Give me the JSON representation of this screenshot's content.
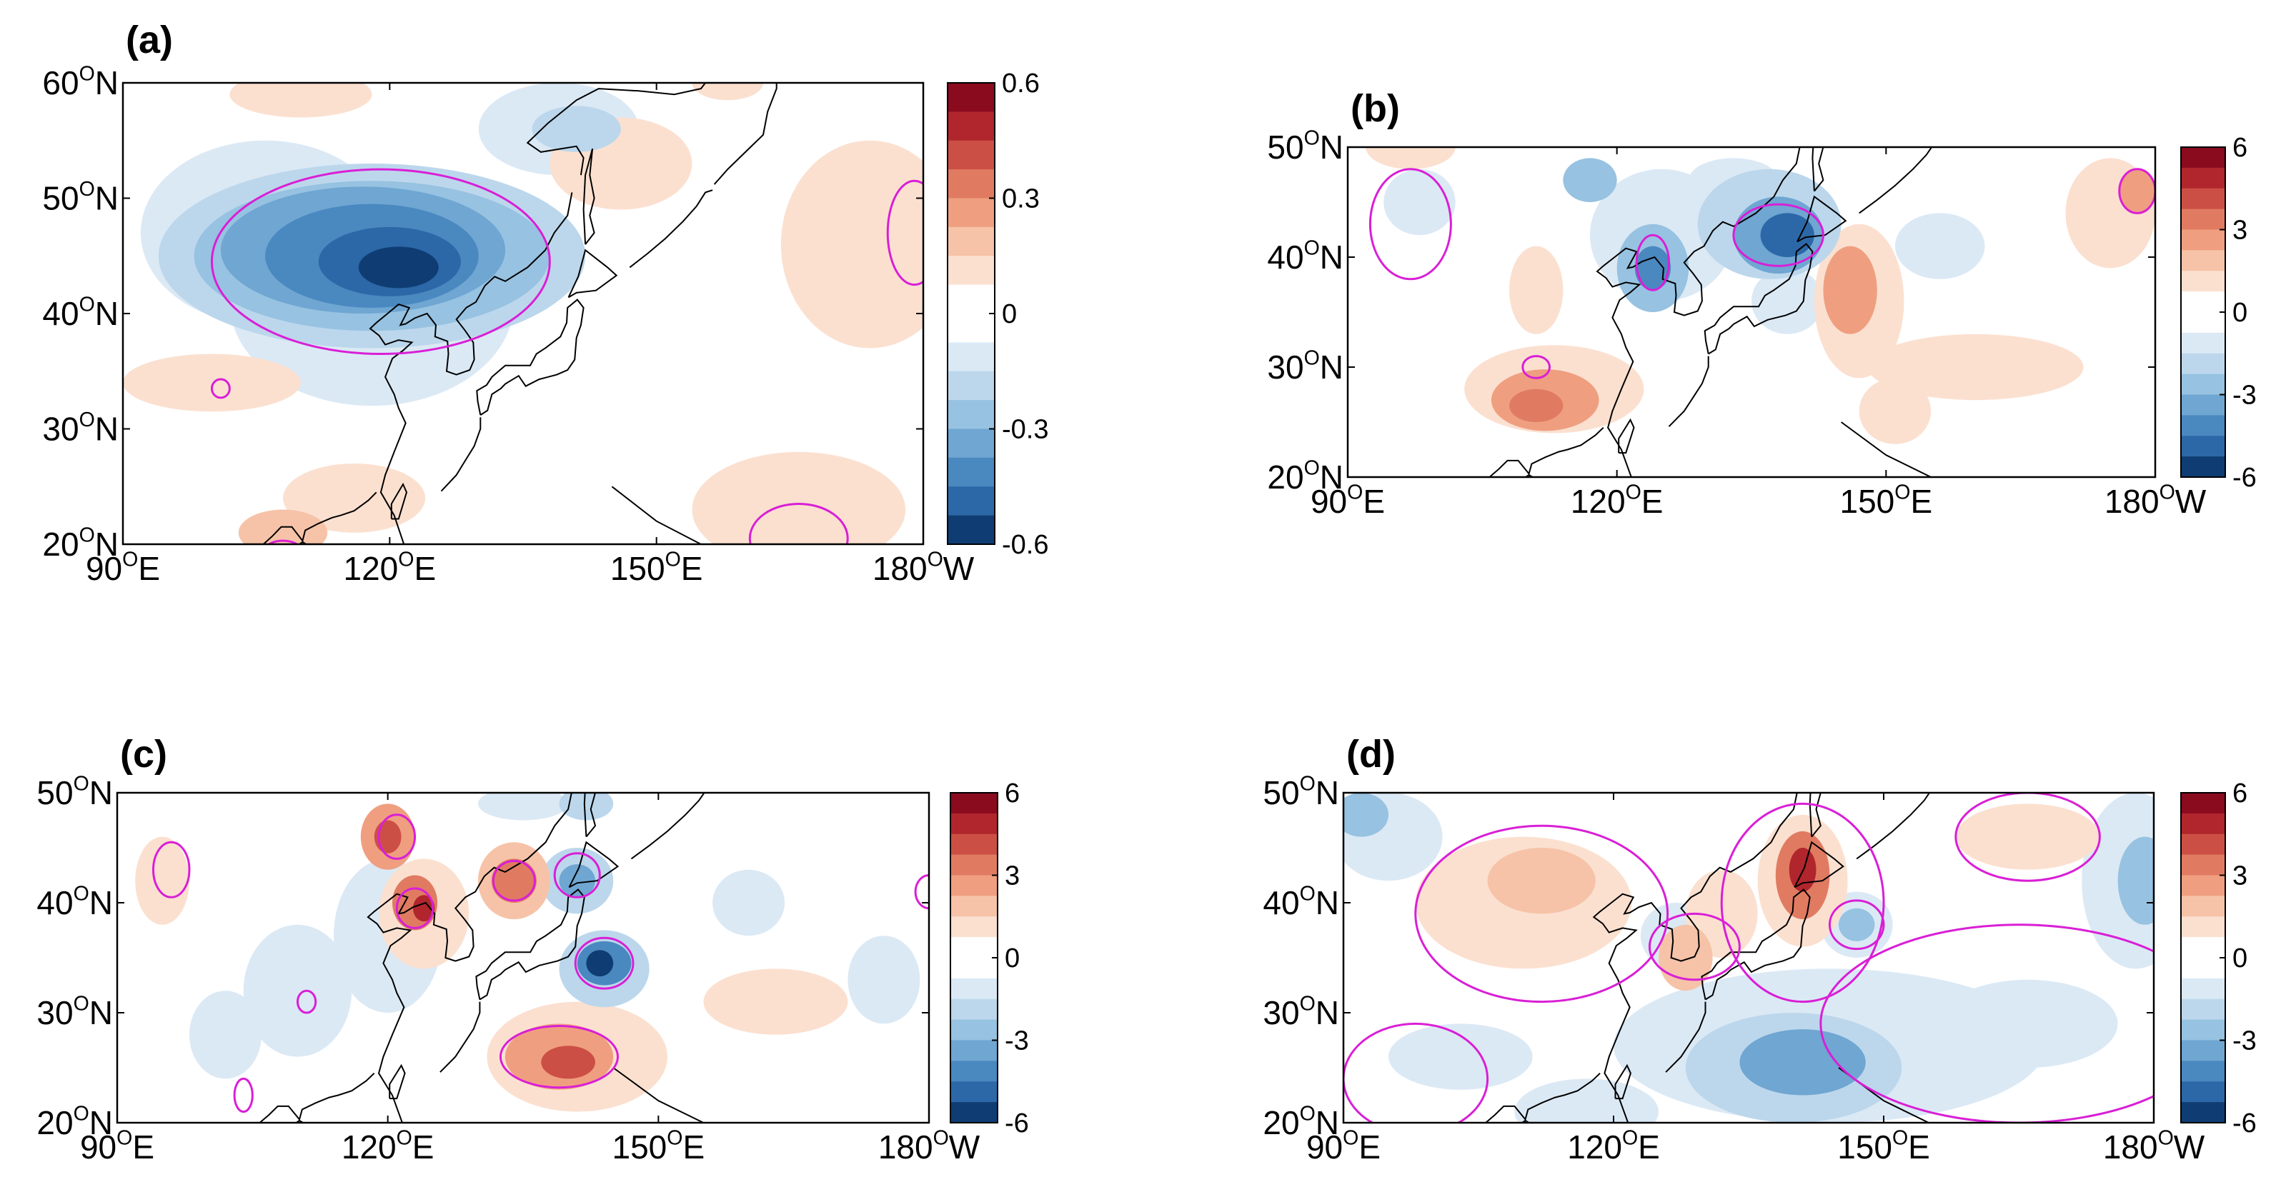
{
  "figure": {
    "panels": [
      {
        "id": "a",
        "label": "(a)",
        "lat_ticks": [
          "60",
          "50",
          "40",
          "30",
          "20"
        ],
        "lon_ticks": [
          "90",
          "120",
          "150",
          "180"
        ],
        "lat_suffix": "N",
        "lon_suffixes": [
          "E",
          "E",
          "E",
          "W"
        ],
        "colorbar": {
          "ticks": [
            "0.6",
            "0.3",
            "0",
            "-0.3",
            "-0.6"
          ],
          "range": [
            -0.6,
            0.6
          ]
        },
        "lat_range": [
          20,
          60
        ],
        "lon_range": [
          90,
          180
        ]
      },
      {
        "id": "b",
        "label": "(b)",
        "lat_ticks": [
          "50",
          "40",
          "30",
          "20"
        ],
        "lon_ticks": [
          "90",
          "120",
          "150",
          "180"
        ],
        "lat_suffix": "N",
        "lon_suffixes": [
          "E",
          "E",
          "E",
          "W"
        ],
        "colorbar": {
          "ticks": [
            "6",
            "3",
            "0",
            "-3",
            "-6"
          ],
          "range": [
            -6,
            6
          ]
        },
        "lat_range": [
          20,
          50
        ],
        "lon_range": [
          90,
          180
        ]
      },
      {
        "id": "c",
        "label": "(c)",
        "lat_ticks": [
          "50",
          "40",
          "30",
          "20"
        ],
        "lon_ticks": [
          "90",
          "120",
          "150",
          "180"
        ],
        "lat_suffix": "N",
        "lon_suffixes": [
          "E",
          "E",
          "E",
          "W"
        ],
        "colorbar": {
          "ticks": [
            "6",
            "3",
            "0",
            "-3",
            "-6"
          ],
          "range": [
            -6,
            6
          ]
        },
        "lat_range": [
          20,
          50
        ],
        "lon_range": [
          90,
          180
        ]
      },
      {
        "id": "d",
        "label": "(d)",
        "lat_ticks": [
          "50",
          "40",
          "30",
          "20"
        ],
        "lon_ticks": [
          "90",
          "120",
          "150",
          "180"
        ],
        "lat_suffix": "N",
        "lon_suffixes": [
          "E",
          "E",
          "E",
          "W"
        ],
        "colorbar": {
          "ticks": [
            "6",
            "3",
            "0",
            "-3",
            "-6"
          ],
          "range": [
            -6,
            6
          ]
        },
        "lat_range": [
          20,
          50
        ],
        "lon_range": [
          90,
          180
        ]
      }
    ],
    "degree_symbol": "O",
    "colors": {
      "red_ramp": [
        "#fbe0d0",
        "#f6c3a8",
        "#ef9f80",
        "#e07b62",
        "#cc4f45",
        "#b0262c",
        "#8a0a1e"
      ],
      "blue_ramp": [
        "#dbe9f5",
        "#bcd7ec",
        "#97c2e1",
        "#6fa6d2",
        "#4a88c0",
        "#2c68a7",
        "#0f3d73"
      ],
      "significance_contour": "#d91fd6",
      "coastline": "#000000"
    }
  }
}
